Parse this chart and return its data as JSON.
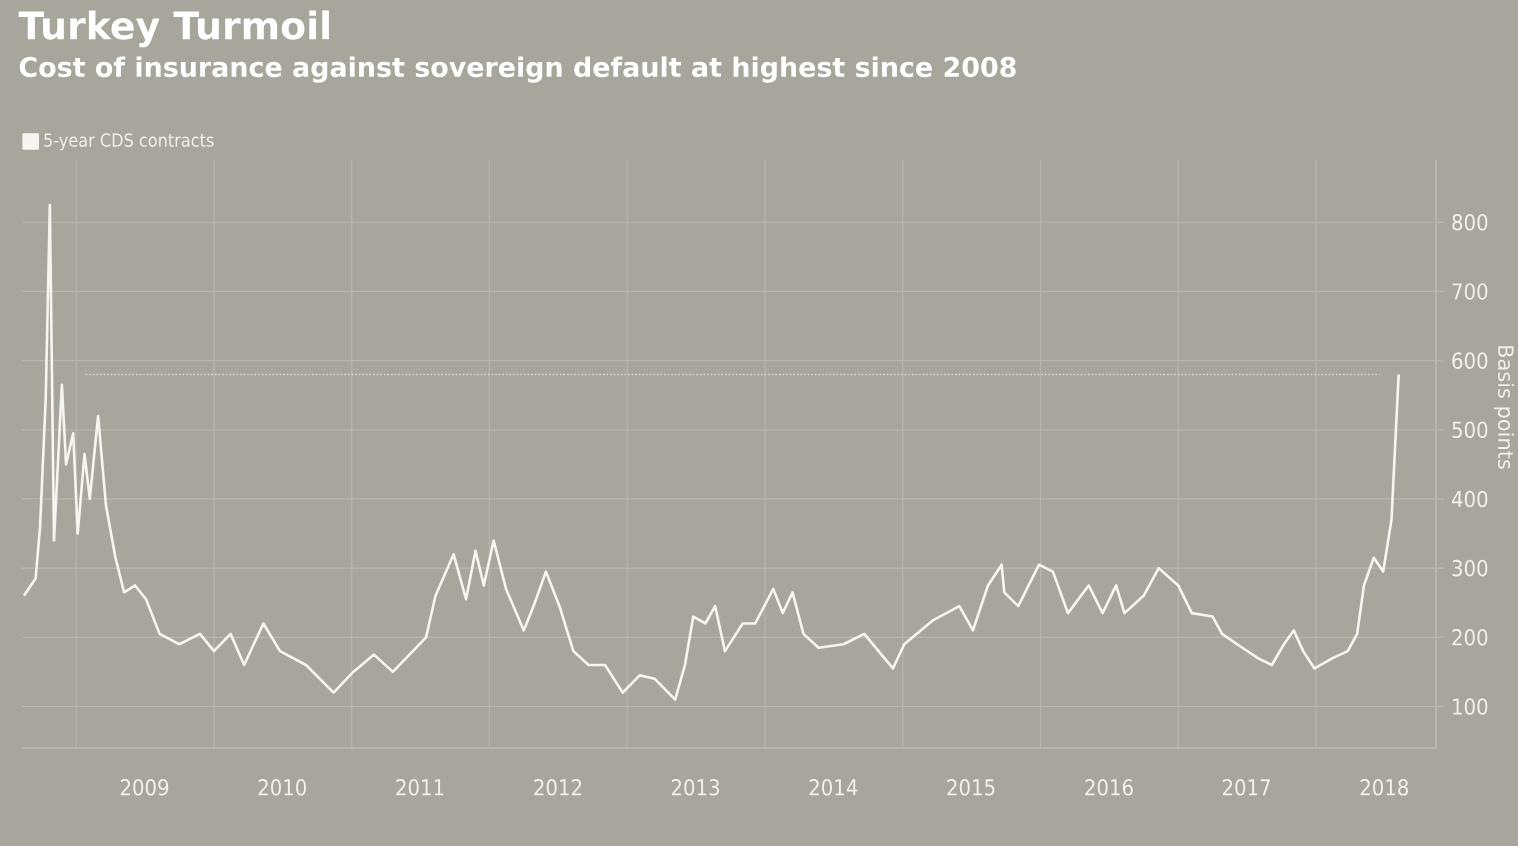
{
  "chart_data": {
    "type": "line",
    "title": "Turkey Turmoil",
    "subtitle": "Cost of insurance against sovereign default at highest since 2008",
    "ylabel": "Basis points",
    "x": [
      "2008-08-15",
      "2008-09-15",
      "2008-09-27",
      "2008-10-12",
      "2008-10-23",
      "2008-11-03",
      "2008-11-24",
      "2008-12-05",
      "2008-12-24",
      "2009-01-05",
      "2009-01-23",
      "2009-02-06",
      "2009-02-28",
      "2009-03-21",
      "2009-04-15",
      "2009-05-08",
      "2009-06-06",
      "2009-07-05",
      "2009-08-10",
      "2009-10-01",
      "2009-11-25",
      "2010-01-01",
      "2010-02-14",
      "2010-03-22",
      "2010-05-12",
      "2010-06-25",
      "2010-09-02",
      "2010-11-14",
      "2011-01-05",
      "2011-03-01",
      "2011-04-20",
      "2011-07-17",
      "2011-08-11",
      "2011-09-28",
      "2011-10-31",
      "2011-11-25",
      "2011-12-17",
      "2012-01-12",
      "2012-02-14",
      "2012-04-01",
      "2012-04-27",
      "2012-05-30",
      "2012-07-05",
      "2012-08-11",
      "2012-09-20",
      "2012-11-03",
      "2012-12-20",
      "2013-02-03",
      "2013-03-15",
      "2013-05-08",
      "2013-06-03",
      "2013-06-25",
      "2013-07-27",
      "2013-08-22",
      "2013-09-17",
      "2013-11-03",
      "2013-12-06",
      "2014-01-23",
      "2014-02-17",
      "2014-03-15",
      "2014-04-13",
      "2014-05-23",
      "2014-07-28",
      "2014-09-21",
      "2014-12-06",
      "2015-01-05",
      "2015-03-23",
      "2015-05-31",
      "2015-07-06",
      "2015-08-15",
      "2015-09-20",
      "2015-09-27",
      "2015-11-03",
      "2015-12-28",
      "2016-02-03",
      "2016-03-14",
      "2016-05-08",
      "2016-06-14",
      "2016-07-20",
      "2016-08-11",
      "2016-10-01",
      "2016-11-10",
      "2017-01-01",
      "2017-02-06",
      "2017-04-02",
      "2017-04-27",
      "2017-06-06",
      "2017-07-31",
      "2017-09-06",
      "2017-10-08",
      "2017-11-03",
      "2017-11-28",
      "2017-12-28",
      "2018-02-14",
      "2018-03-26",
      "2018-04-20",
      "2018-05-08",
      "2018-06-03",
      "2018-06-28",
      "2018-07-20",
      "2018-08-08"
    ],
    "series": [
      {
        "name": "5-year CDS contracts",
        "color": "#f6f5f1",
        "values": [
          260,
          285,
          360,
          545,
          825,
          340,
          565,
          450,
          495,
          350,
          465,
          400,
          520,
          390,
          315,
          265,
          275,
          255,
          205,
          190,
          205,
          180,
          205,
          160,
          220,
          180,
          160,
          120,
          150,
          175,
          150,
          200,
          260,
          320,
          255,
          325,
          275,
          340,
          270,
          210,
          245,
          295,
          245,
          180,
          160,
          160,
          120,
          145,
          140,
          110,
          160,
          230,
          220,
          245,
          180,
          220,
          220,
          270,
          235,
          265,
          205,
          185,
          190,
          205,
          155,
          190,
          225,
          245,
          210,
          275,
          305,
          265,
          245,
          305,
          295,
          235,
          275,
          235,
          275,
          235,
          260,
          300,
          275,
          235,
          230,
          205,
          190,
          170,
          160,
          190,
          210,
          180,
          155,
          170,
          180,
          205,
          275,
          315,
          295,
          370,
          580
        ]
      }
    ],
    "xlim": [
      "2008-08-10",
      "2018-11-15"
    ],
    "xticks": [
      {
        "value": "2009-01-01",
        "label": null
      },
      {
        "value": "2009-07-01",
        "label": "2009"
      },
      {
        "value": "2010-01-01",
        "label": null
      },
      {
        "value": "2010-07-01",
        "label": "2010"
      },
      {
        "value": "2011-01-01",
        "label": null
      },
      {
        "value": "2011-07-01",
        "label": "2011"
      },
      {
        "value": "2012-01-01",
        "label": null
      },
      {
        "value": "2012-07-01",
        "label": "2012"
      },
      {
        "value": "2013-01-01",
        "label": null
      },
      {
        "value": "2013-07-01",
        "label": "2013"
      },
      {
        "value": "2014-01-01",
        "label": null
      },
      {
        "value": "2014-07-01",
        "label": "2014"
      },
      {
        "value": "2015-01-01",
        "label": null
      },
      {
        "value": "2015-07-01",
        "label": "2015"
      },
      {
        "value": "2016-01-01",
        "label": null
      },
      {
        "value": "2016-07-01",
        "label": "2016"
      },
      {
        "value": "2017-01-01",
        "label": null
      },
      {
        "value": "2017-07-01",
        "label": "2017"
      },
      {
        "value": "2018-01-01",
        "label": null
      },
      {
        "value": "2018-07-01",
        "label": "2018"
      }
    ],
    "ylim": [
      40,
      890
    ],
    "yticks": [
      100,
      200,
      300,
      400,
      500,
      600,
      700,
      800
    ],
    "ref_lines": [
      {
        "axis": "y",
        "value": 580,
        "color": "#dcdad4",
        "line_style": "dotted"
      }
    ],
    "grid": true,
    "legend": "top left",
    "marker": "none",
    "line_style": "solid"
  }
}
